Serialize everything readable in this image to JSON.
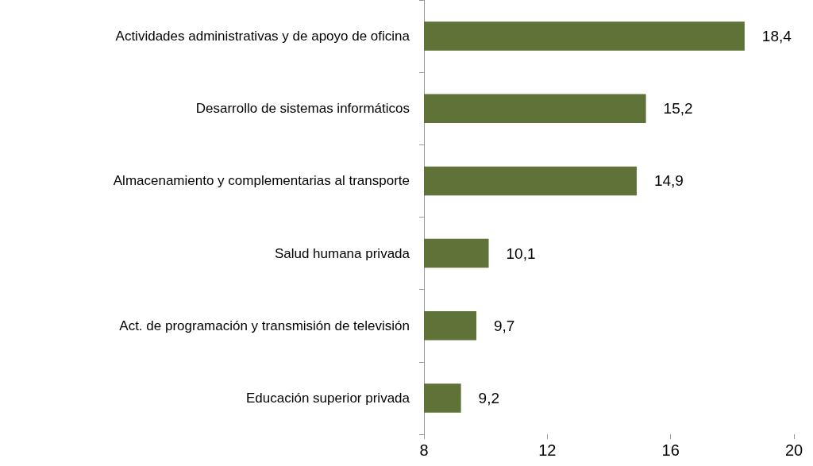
{
  "chart_data": {
    "type": "bar",
    "orientation": "horizontal",
    "categories": [
      "Actividades administrativas y de apoyo de oficina",
      "Desarrollo de sistemas informáticos",
      "Almacenamiento y complementarias al transporte",
      "Salud humana privada",
      "Act. de programación y transmisión de televisión",
      "Educación superior privada"
    ],
    "values": [
      18.4,
      15.2,
      14.9,
      10.1,
      9.7,
      9.2
    ],
    "value_labels": [
      "18,4",
      "15,2",
      "14,9",
      "10,1",
      "9,7",
      "9,2"
    ],
    "color": "#5f7339",
    "xlim": [
      8,
      20
    ],
    "xticks": [
      8,
      12,
      16,
      20
    ]
  }
}
